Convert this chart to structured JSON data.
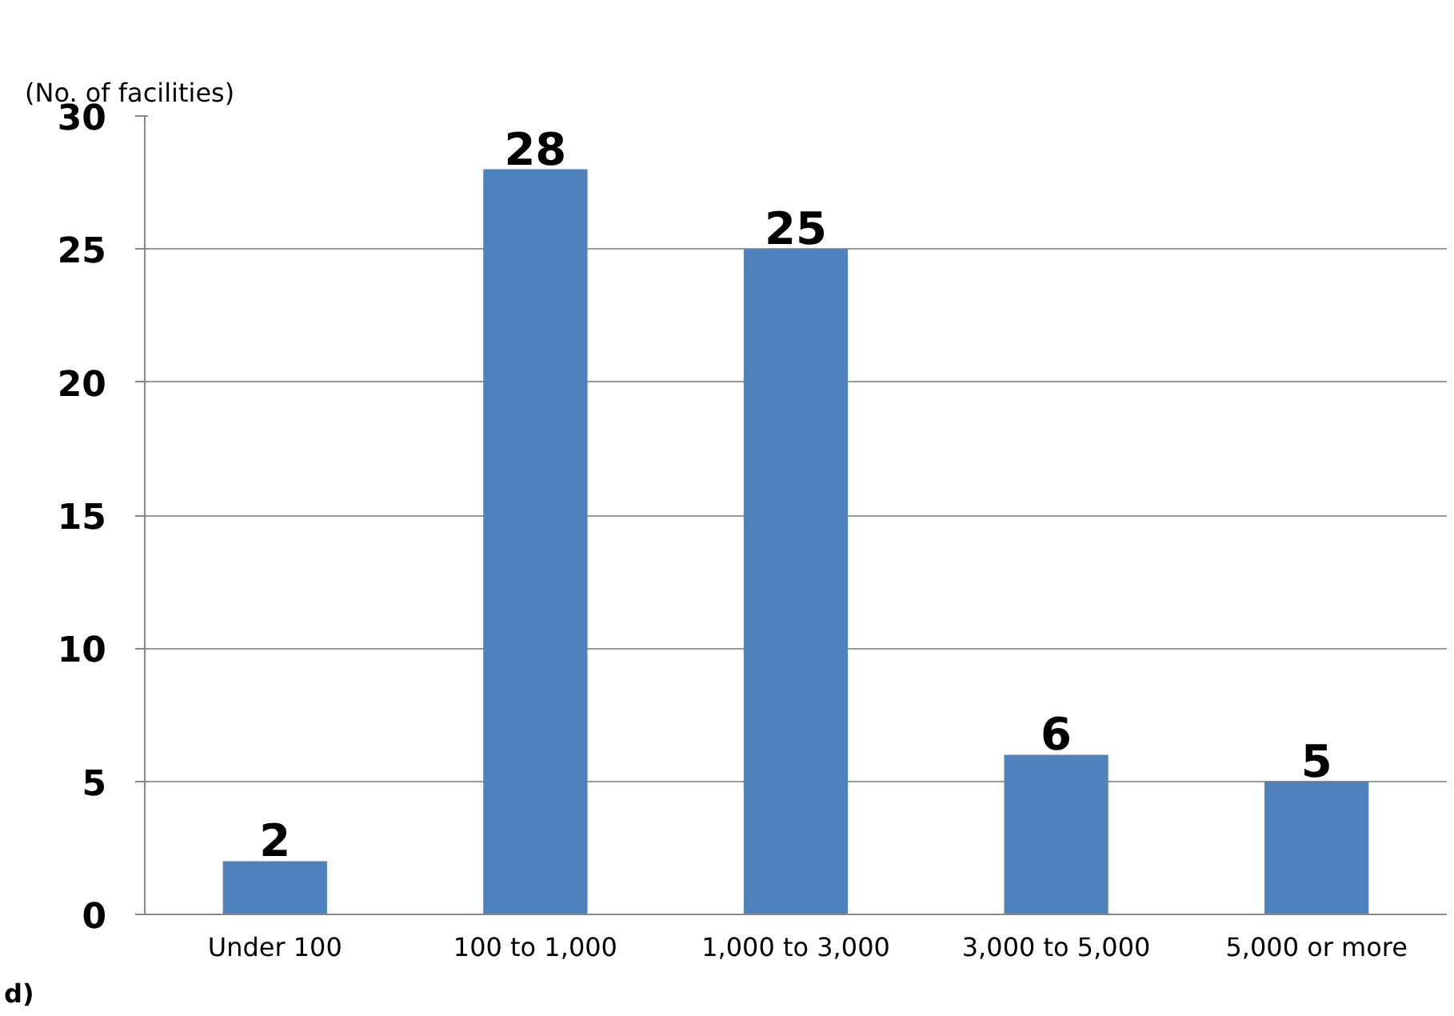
{
  "chart_data": {
    "type": "bar",
    "ylabel": "(No. of facilities)",
    "categories": [
      "Under 100",
      "100 to 1,000",
      "1,000 to 3,000",
      "3,000 to 5,000",
      "5,000 or more"
    ],
    "values": [
      2,
      28,
      25,
      6,
      5
    ],
    "color": "#4f81bd",
    "ylim": [
      0,
      30
    ],
    "yticks": [
      0,
      5,
      10,
      15,
      20,
      25,
      30
    ],
    "grid": "y",
    "data_labels": true,
    "annotations": [
      "d)"
    ]
  }
}
